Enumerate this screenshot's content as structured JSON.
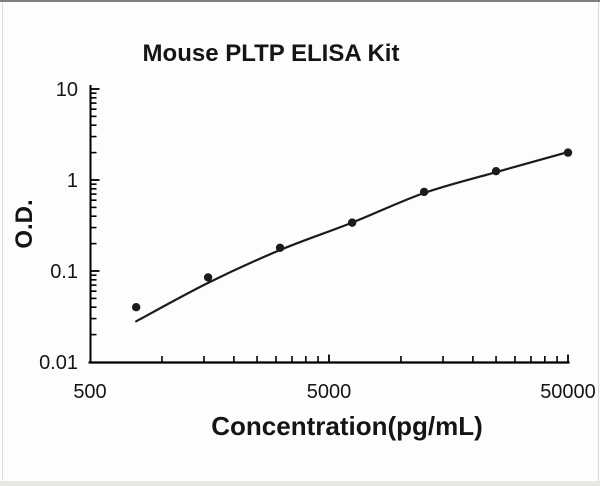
{
  "chart_data": {
    "type": "scatter",
    "title": "Mouse PLTP ELISA Kit",
    "xlabel": "Concentration(pg/mL)",
    "ylabel": "O.D.",
    "xscale": "log",
    "yscale": "log",
    "xlim": [
      500,
      50000
    ],
    "ylim": [
      0.01,
      10
    ],
    "grid": false,
    "legend_position": "none",
    "xticks": [
      {
        "value": 500,
        "label": "500"
      },
      {
        "value": 5000,
        "label": "5000"
      },
      {
        "value": 50000,
        "label": "50000"
      }
    ],
    "yticks": [
      {
        "value": 10,
        "label": "10"
      },
      {
        "value": 1,
        "label": "1"
      },
      {
        "value": 0.1,
        "label": "0.1"
      },
      {
        "value": 0.01,
        "label": "0.01"
      }
    ],
    "series": [
      {
        "name": "standard-points",
        "type": "scatter",
        "x": [
          780,
          1560,
          3120,
          6250,
          12500,
          25000,
          50000
        ],
        "y": [
          0.04,
          0.085,
          0.18,
          0.34,
          0.74,
          1.25,
          2.0
        ]
      },
      {
        "name": "fitted-curve",
        "type": "line",
        "x": [
          780,
          1560,
          3120,
          6250,
          12500,
          25000,
          50000
        ],
        "y": [
          0.028,
          0.074,
          0.17,
          0.34,
          0.72,
          1.22,
          2.03
        ]
      }
    ],
    "colors": {
      "marker": "#1b1b1b",
      "line": "#1b1b1b",
      "axis": "#000000",
      "text": "#161616",
      "background": "#fdfdfd"
    }
  }
}
